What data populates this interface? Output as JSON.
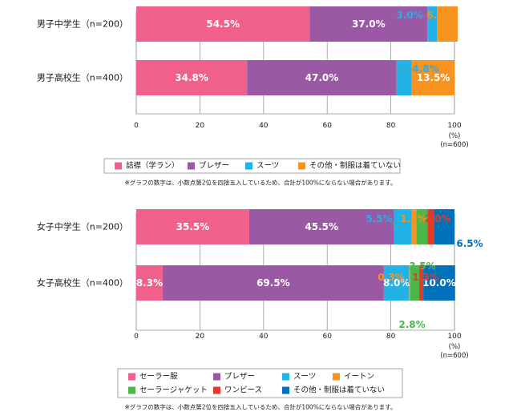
{
  "chart_data": [
    {
      "type": "bar",
      "orientation": "horizontal",
      "stacked": true,
      "categories": [
        "男子中学生（n=200）",
        "男子高校生（n=400）"
      ],
      "series": [
        {
          "name": "詰襟（学ラン）",
          "color": "#f0608a",
          "values": [
            54.5,
            34.8
          ]
        },
        {
          "name": "ブレザー",
          "color": "#9b58a4",
          "values": [
            37.0,
            47.0
          ]
        },
        {
          "name": "スーツ",
          "color": "#21b2e8",
          "values": [
            3.0,
            4.8
          ]
        },
        {
          "name": "その他・制服は着ていない",
          "color": "#f7931e",
          "values": [
            6.5,
            13.5
          ]
        }
      ],
      "data_labels": [
        [
          "54.5%",
          "37.0%",
          "3.0%",
          "6.5%"
        ],
        [
          "34.8%",
          "47.0%",
          "4.8%",
          "13.5%"
        ]
      ],
      "xlim": [
        0,
        100
      ],
      "xticks": [
        0,
        20,
        40,
        60,
        80,
        100
      ],
      "unit_label": "(%)",
      "n_label": "(n=600)",
      "grid": true,
      "legend_position": "bottom",
      "note": "※グラフの数字は、小数点第2位を四捨五入しているため、合計が100%にならない場合があります。"
    },
    {
      "type": "bar",
      "orientation": "horizontal",
      "stacked": true,
      "categories": [
        "女子中学生（n=200）",
        "女子高校生（n=400）"
      ],
      "series": [
        {
          "name": "セーラー服",
          "color": "#f0608a",
          "values": [
            35.5,
            8.3
          ]
        },
        {
          "name": "ブレザー",
          "color": "#9b58a4",
          "values": [
            45.5,
            69.5
          ]
        },
        {
          "name": "スーツ",
          "color": "#21b2e8",
          "values": [
            5.5,
            8.0
          ]
        },
        {
          "name": "イートン",
          "color": "#f7931e",
          "values": [
            1.5,
            0.3
          ]
        },
        {
          "name": "セーラージャケット",
          "color": "#4ab848",
          "values": [
            3.5,
            2.8
          ]
        },
        {
          "name": "ワンピース",
          "color": "#e53a27",
          "values": [
            2.0,
            1.3
          ]
        },
        {
          "name": "その他・制服は着ていない",
          "color": "#0072bc",
          "values": [
            6.5,
            10.0
          ]
        }
      ],
      "data_labels": [
        [
          "35.5%",
          "45.5%",
          "5.5%",
          "1.5%",
          "3.5%",
          "2.0%",
          "6.5%"
        ],
        [
          "8.3%",
          "69.5%",
          "8.0%",
          "0.3%",
          "2.8%",
          "1.3%",
          "10.0%"
        ]
      ],
      "xlim": [
        0,
        100
      ],
      "xticks": [
        0,
        20,
        40,
        60,
        80,
        100
      ],
      "unit_label": "(%)",
      "n_label": "(n=600)",
      "grid": true,
      "legend_position": "bottom",
      "note": "※グラフの数字は、小数点第2位を四捨五入しているため、合計が100%にならない場合があります。"
    }
  ]
}
